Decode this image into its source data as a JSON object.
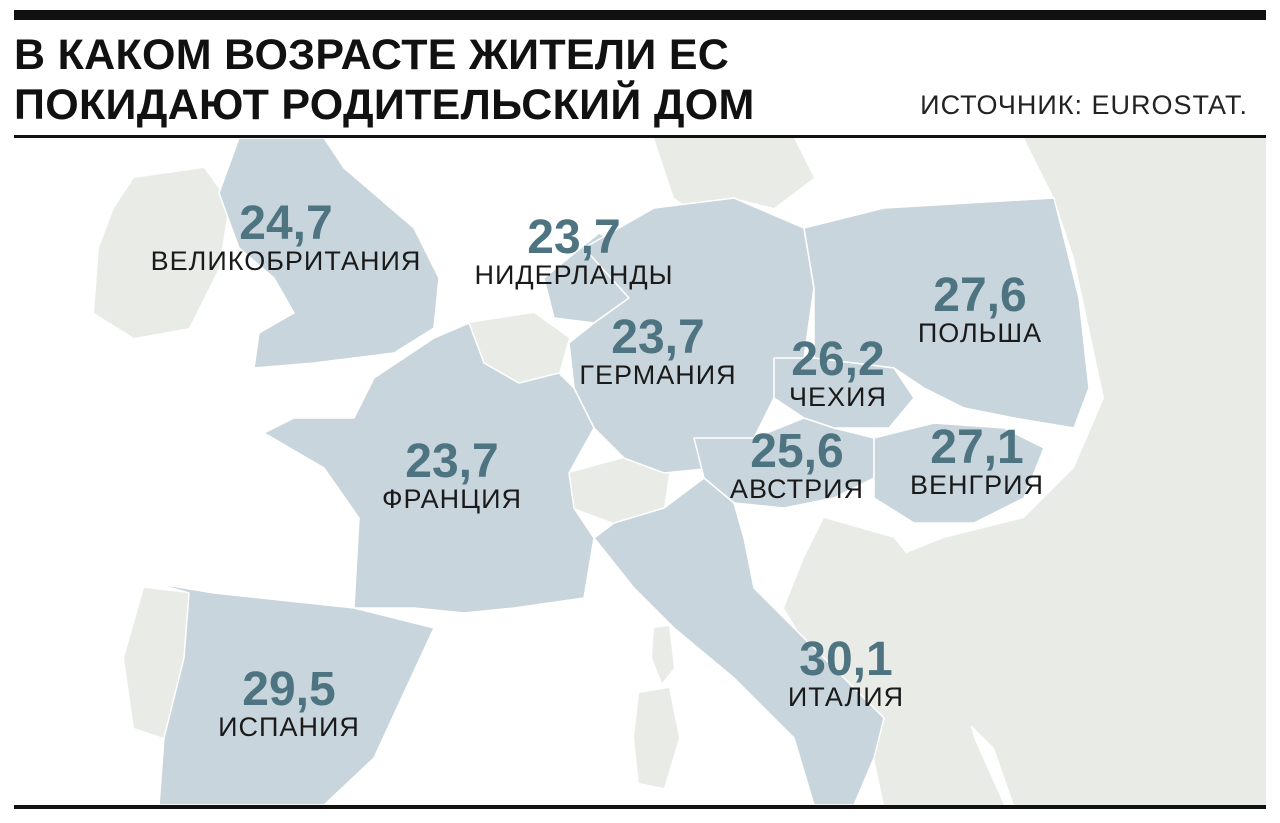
{
  "header": {
    "title": "В КАКОМ ВОЗРАСТЕ ЖИТЕЛИ ЕС ПОКИДАЮТ РОДИТЕЛЬСКИЙ ДОМ",
    "source": "ИСТОЧНИК: EUROSTAT."
  },
  "colors": {
    "highlight_country": "#c8d5dc",
    "other_land": "#e9ebe6",
    "sea": "#ffffff",
    "value_text": "#4d7480",
    "label_text": "#1a1a1a"
  },
  "countries": [
    {
      "name": "ВЕЛИКОБРИТАНИЯ",
      "value": "24,7"
    },
    {
      "name": "НИДЕРЛАНДЫ",
      "value": "23,7"
    },
    {
      "name": "ГЕРМАНИЯ",
      "value": "23,7"
    },
    {
      "name": "ПОЛЬША",
      "value": "27,6"
    },
    {
      "name": "ЧЕХИЯ",
      "value": "26,2"
    },
    {
      "name": "ФРАНЦИЯ",
      "value": "23,7"
    },
    {
      "name": "АВСТРИЯ",
      "value": "25,6"
    },
    {
      "name": "ВЕНГРИЯ",
      "value": "27,1"
    },
    {
      "name": "ИСПАНИЯ",
      "value": "29,5"
    },
    {
      "name": "ИТАЛИЯ",
      "value": "30,1"
    }
  ]
}
